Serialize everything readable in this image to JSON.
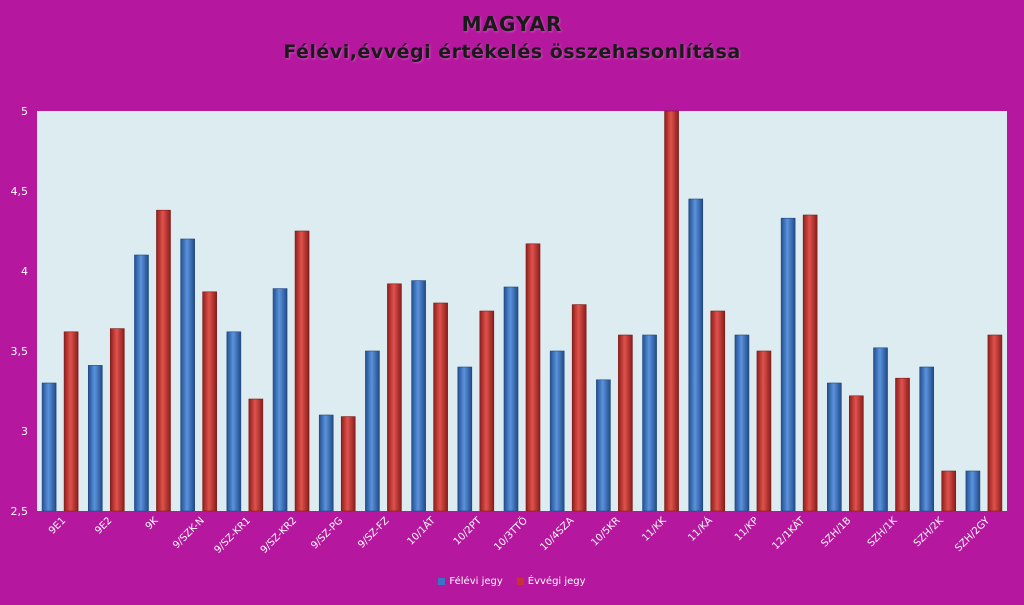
{
  "chart_data": {
    "type": "bar",
    "title": "MAGYAR",
    "subtitle": "Félévi,évvégi értékelés összehasonlítása",
    "categories": [
      "9E1",
      "9E2",
      "9K",
      "9/SZK-N",
      "9/SZ-KR1",
      "9/SZ-KR2",
      "9/SZ-PG",
      "9/SZ-FZ",
      "10/1ÁT",
      "10/2PT",
      "10/3TTÖ",
      "10/4SZA",
      "10/5KR",
      "11/KK",
      "11/KÁ",
      "11/KP",
      "12/1KÁT",
      "SZH/1B",
      "SZH/1K",
      "SZH/2K",
      "SZH/2GY"
    ],
    "series": [
      {
        "name": "Félévi jegy",
        "color": "#3a74c4",
        "values": [
          3.3,
          3.41,
          4.1,
          4.2,
          3.62,
          3.89,
          3.1,
          3.5,
          3.94,
          3.4,
          3.9,
          3.5,
          3.32,
          3.6,
          4.45,
          3.6,
          4.33,
          3.3,
          3.52,
          3.4,
          2.75
        ]
      },
      {
        "name": "Évvégi jegy",
        "color": "#c8322f",
        "values": [
          3.62,
          3.64,
          4.38,
          3.87,
          3.2,
          4.25,
          3.09,
          3.92,
          3.8,
          3.75,
          4.17,
          3.79,
          3.6,
          5.0,
          3.75,
          3.5,
          4.35,
          3.22,
          3.33,
          2.75,
          3.6
        ]
      }
    ],
    "ylim": [
      2.5,
      5
    ],
    "yticks": [
      "2,5",
      "3",
      "3,5",
      "4",
      "4,5",
      "5"
    ],
    "grid": false,
    "legend": "bottom"
  }
}
